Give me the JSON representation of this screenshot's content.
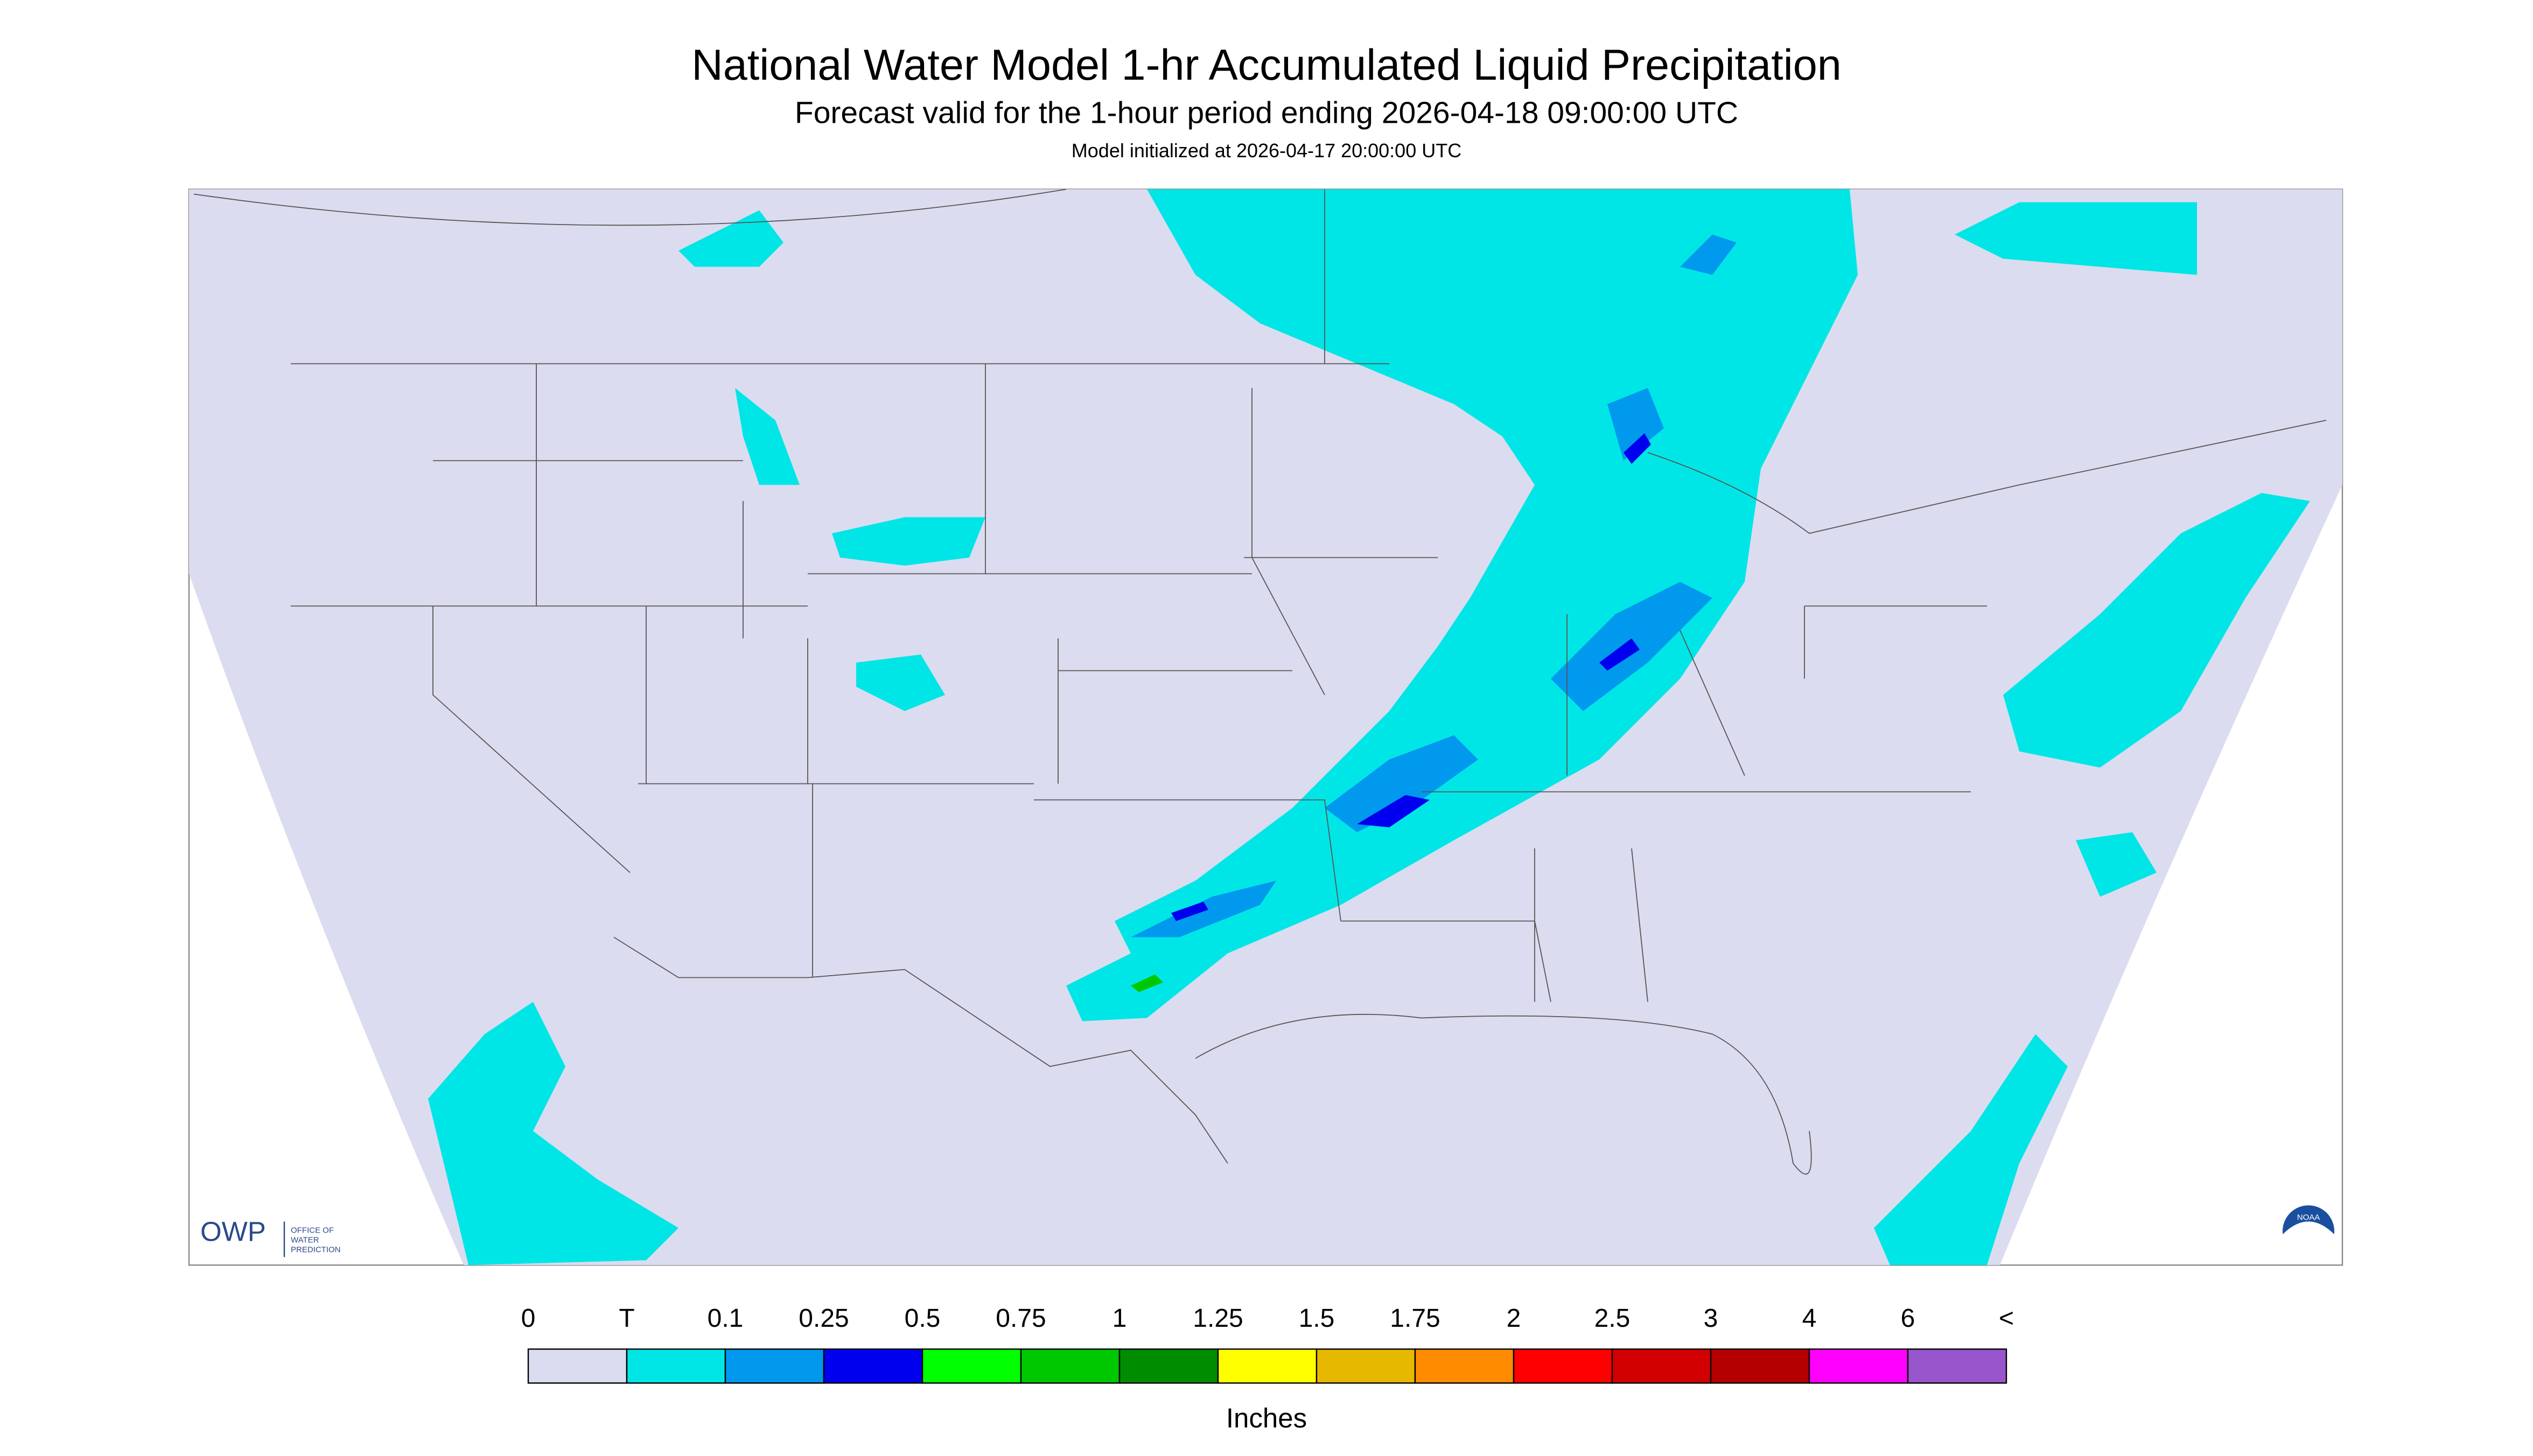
{
  "header": {
    "title": "National Water Model 1-hr Accumulated Liquid Precipitation",
    "subtitle": "Forecast valid for the 1-hour period ending 2026-04-18 09:00:00 UTC",
    "note": "Model initialized at 2026-04-17 20:00:00 UTC"
  },
  "legend": {
    "labels": [
      "0",
      "T",
      "0.1",
      "0.25",
      "0.5",
      "0.75",
      "1",
      "1.25",
      "1.5",
      "1.75",
      "2",
      "2.5",
      "3",
      "4",
      "6",
      "<"
    ],
    "colors": [
      "#dcdcf0",
      "#00e6e6",
      "#0099ee",
      "#0000ee",
      "#00ff00",
      "#00c800",
      "#008c00",
      "#ffff00",
      "#e6b800",
      "#ff8c00",
      "#ff0000",
      "#d20000",
      "#b40000",
      "#ff00ff",
      "#9955cc"
    ],
    "unit": "Inches"
  },
  "logo": {
    "name": "OWP",
    "line1": "OFFICE OF",
    "line2": "WATER",
    "line3": "PREDICTION",
    "agency": "NOAA"
  }
}
